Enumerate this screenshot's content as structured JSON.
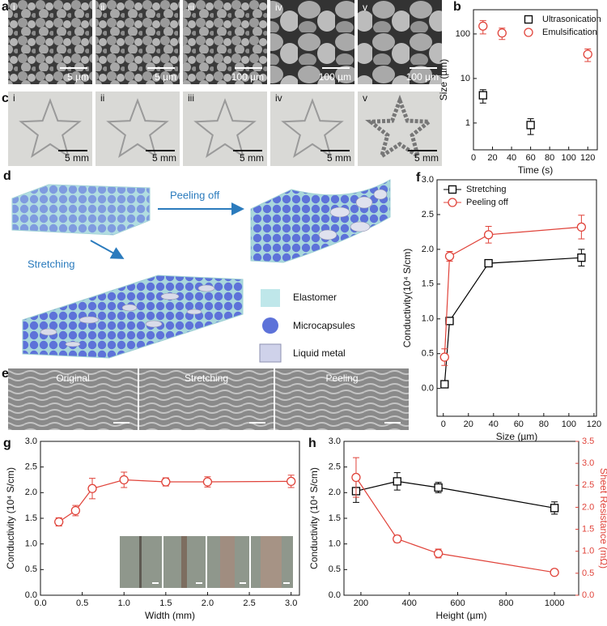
{
  "figure": {
    "a": {
      "label": "a",
      "images": [
        {
          "numeral": "i",
          "scale": "5 µm"
        },
        {
          "numeral": "ii",
          "scale": "5 µm"
        },
        {
          "numeral": "iii",
          "scale": "100 µm"
        },
        {
          "numeral": "iv",
          "scale": "100 µm"
        },
        {
          "numeral": "v",
          "scale": "100 µm"
        }
      ]
    },
    "c": {
      "label": "c",
      "images": [
        {
          "numeral": "i",
          "scale": "5 mm"
        },
        {
          "numeral": "ii",
          "scale": "5 mm"
        },
        {
          "numeral": "iii",
          "scale": "5 mm"
        },
        {
          "numeral": "iv",
          "scale": "5 mm"
        },
        {
          "numeral": "v",
          "scale": "5 mm"
        }
      ]
    },
    "d": {
      "label": "d",
      "peeling": "Peeling off",
      "stretching": "Stretching",
      "legend": [
        "Elastomer",
        "Microcapsules",
        "Liquid metal"
      ]
    },
    "e": {
      "label": "e",
      "images": [
        "Original",
        "Stretching",
        "Peeling"
      ]
    }
  },
  "chart_data": [
    {
      "type": "scatter",
      "panel_label": "b",
      "xlabel": "Time (s)",
      "ylabel": "Size (µm)",
      "yscale": "log",
      "xlim": [
        0,
        130
      ],
      "ylim": [
        0.25,
        350
      ],
      "xticks": [
        0,
        20,
        40,
        60,
        80,
        100,
        120
      ],
      "yticks": [
        1,
        10,
        100
      ],
      "legend": "upper right",
      "series": [
        {
          "name": "Ultrasonication",
          "color": "#000000",
          "marker": "square",
          "x": [
            10,
            60
          ],
          "values": [
            4.2,
            0.9
          ],
          "errors": [
            1.4,
            0.35
          ]
        },
        {
          "name": "Emulsification",
          "color": "#e0433a",
          "marker": "circle",
          "x": [
            10,
            30,
            120
          ],
          "values": [
            150,
            105,
            35
          ],
          "errors": [
            50,
            30,
            11
          ]
        }
      ]
    },
    {
      "type": "line",
      "panel_label": "f",
      "xlabel": "Size (µm)",
      "ylabel": "Conductivity(10⁴ S/cm)",
      "xlim": [
        -5,
        122
      ],
      "ylim": [
        -0.4,
        3.0
      ],
      "xticks": [
        0,
        20,
        40,
        60,
        80,
        100,
        120
      ],
      "yticks": [
        {
          "value": 0,
          "label": "0.0"
        },
        0.5,
        {
          "value": 1,
          "label": "1.0"
        },
        1.5,
        {
          "value": 2,
          "label": "2.0"
        },
        2.5,
        {
          "value": 3,
          "label": "3.0"
        }
      ],
      "legend": "upper left",
      "series": [
        {
          "name": "Stretching",
          "color": "#000000",
          "marker": "square",
          "x": [
            1,
            5,
            36,
            110
          ],
          "values": [
            0.06,
            0.97,
            1.8,
            1.88
          ],
          "errors": [
            0.04,
            0.05,
            0.05,
            0.12
          ]
        },
        {
          "name": "Peeling off",
          "color": "#e0433a",
          "marker": "circle",
          "x": [
            1,
            5,
            36,
            110
          ],
          "values": [
            0.45,
            1.9,
            2.21,
            2.32
          ],
          "errors": [
            0.12,
            0.07,
            0.12,
            0.17
          ]
        }
      ]
    },
    {
      "type": "line",
      "panel_label": "g",
      "xlabel": "Width (mm)",
      "ylabel": "Conductivity (10⁴ S/cm)",
      "xlim": [
        0,
        3.1
      ],
      "ylim": [
        0,
        3.0
      ],
      "xticks": [
        {
          "value": 0,
          "label": "0.0"
        },
        0.5,
        {
          "value": 1,
          "label": "1.0"
        },
        1.5,
        {
          "value": 2,
          "label": "2.0"
        },
        2.5,
        {
          "value": 3,
          "label": "3.0"
        }
      ],
      "yticks": [
        {
          "value": 0,
          "label": "0.0"
        },
        0.5,
        {
          "value": 1,
          "label": "1.0"
        },
        1.5,
        {
          "value": 2,
          "label": "2.0"
        },
        2.5,
        {
          "value": 3,
          "label": "3.0"
        }
      ],
      "series": [
        {
          "color": "#e0433a",
          "marker": "circle",
          "x": [
            0.22,
            0.42,
            0.62,
            1.0,
            1.5,
            2.0,
            3.0
          ],
          "values": [
            1.43,
            1.65,
            2.08,
            2.25,
            2.21,
            2.21,
            2.22
          ],
          "errors": [
            0.08,
            0.1,
            0.2,
            0.15,
            0.08,
            0.1,
            0.12
          ]
        }
      ]
    },
    {
      "type": "line",
      "panel_label": "h",
      "xlabel": "Height (µm)",
      "ylabel": "Conductivity (10⁴ S/cm)",
      "y2label": "Sheet Resistance (mΩ)",
      "xlim": [
        130,
        1100
      ],
      "ylim": [
        0,
        3.0
      ],
      "y2lim": [
        0,
        3.5
      ],
      "xticks": [
        200,
        400,
        600,
        800,
        1000
      ],
      "yticks": [
        {
          "value": 0,
          "label": "0.0"
        },
        0.5,
        {
          "value": 1,
          "label": "1.0"
        },
        1.5,
        {
          "value": 2,
          "label": "2.0"
        },
        2.5,
        {
          "value": 3,
          "label": "3.0"
        }
      ],
      "y2ticks": [
        {
          "value": 0,
          "label": "0.0"
        },
        0.5,
        {
          "value": 1,
          "label": "1.0"
        },
        1.5,
        {
          "value": 2,
          "label": "2.0"
        },
        2.5,
        {
          "value": 3,
          "label": "3.0"
        },
        3.5
      ],
      "series": [
        {
          "color": "#000000",
          "marker": "square",
          "x": [
            180,
            350,
            520,
            1000
          ],
          "values": [
            2.03,
            2.22,
            2.1,
            1.7
          ],
          "errors": [
            0.22,
            0.17,
            0.1,
            0.12
          ]
        },
        {
          "color": "#e0433a",
          "marker": "circle",
          "axis": "y2",
          "x": [
            180,
            350,
            520,
            1000
          ],
          "values": [
            2.68,
            1.28,
            0.95,
            0.52
          ],
          "errors": [
            0.45,
            0.08,
            0.1,
            0.04
          ]
        }
      ]
    }
  ]
}
